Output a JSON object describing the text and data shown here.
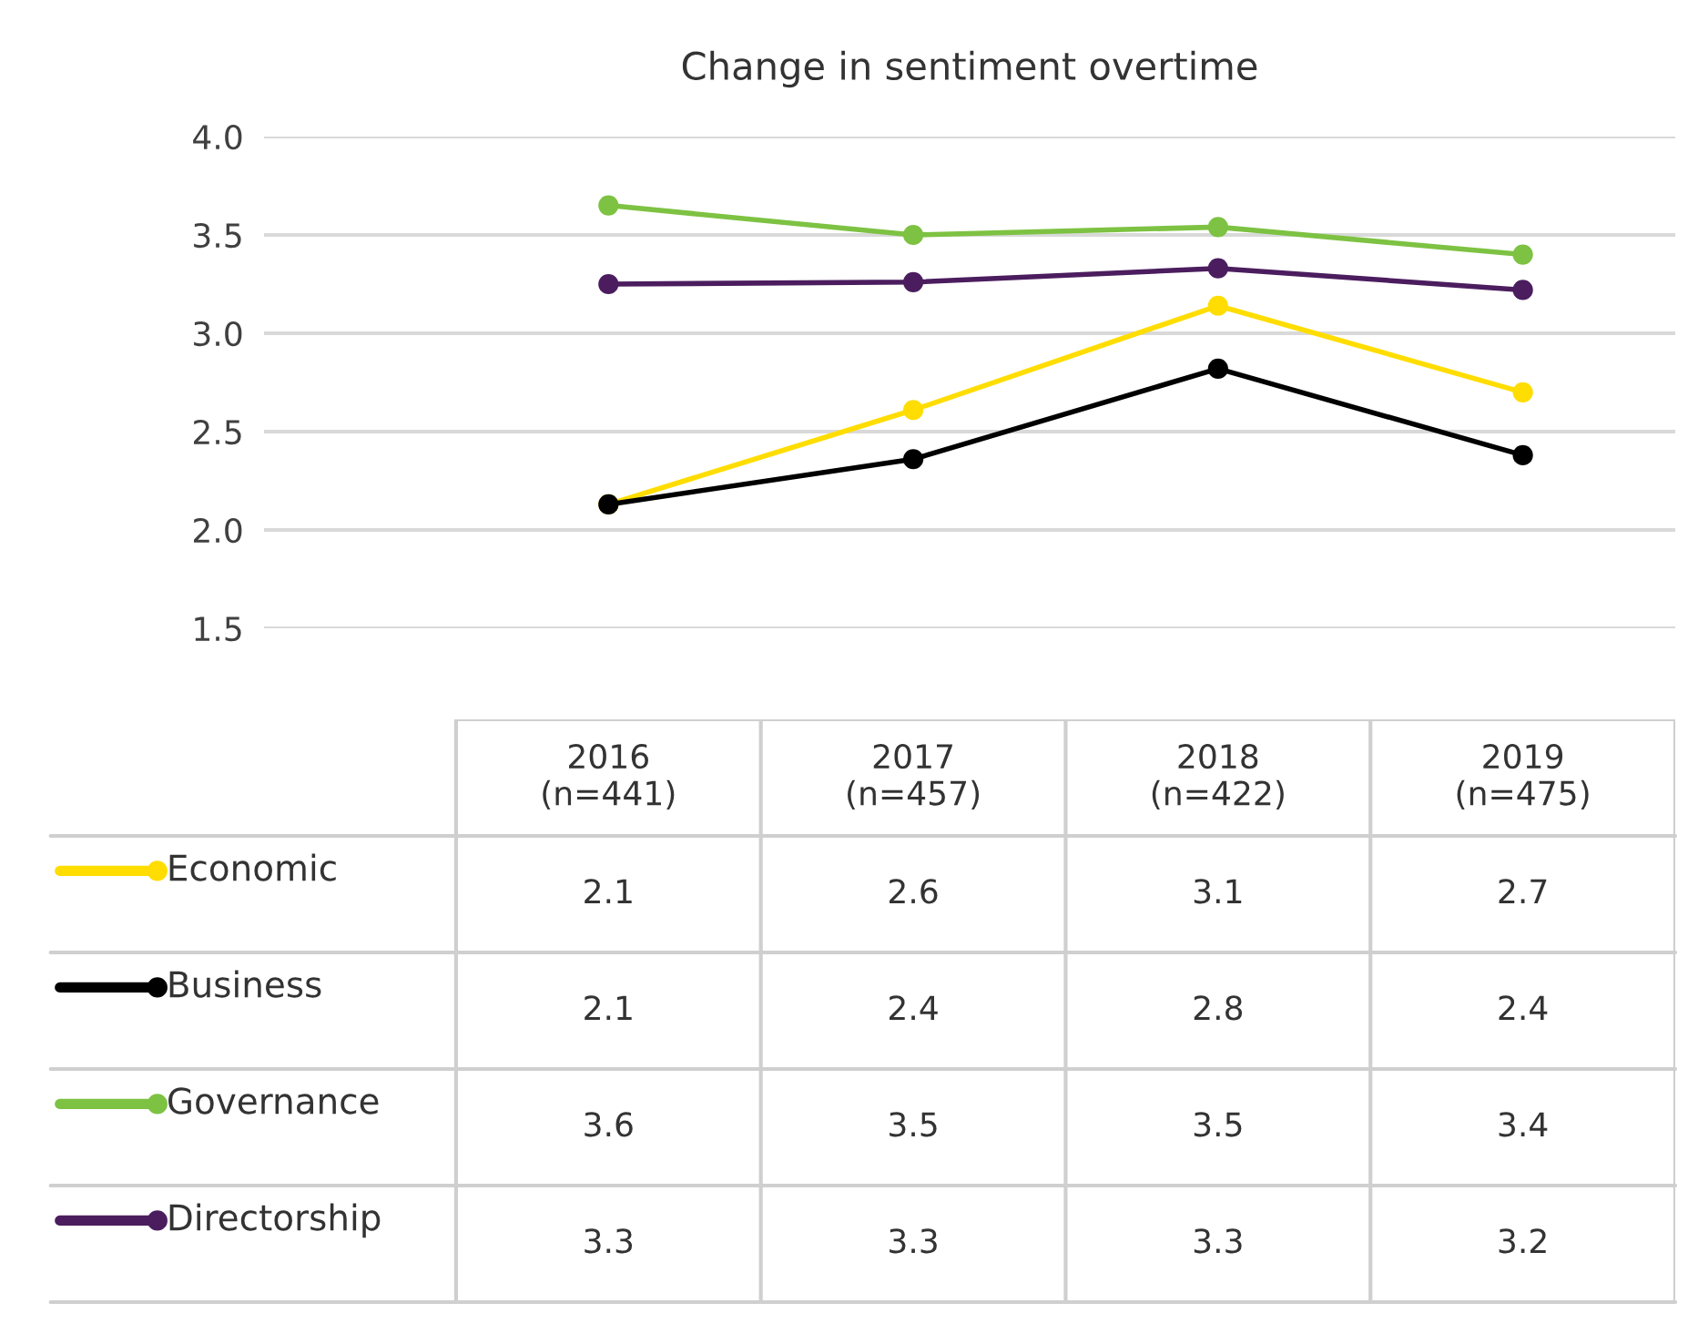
{
  "chart_data": {
    "type": "line",
    "title": "Change in sentiment overtime",
    "categories": [
      "2016\n(n=441)",
      "2017\n(n=457)",
      "2018\n(n=422)",
      "2019\n(n=475)"
    ],
    "series": [
      {
        "name": "Economic",
        "color": "#ffdd00",
        "values": [
          2.13,
          2.61,
          3.14,
          2.7
        ],
        "value_labels": [
          "2.1",
          "2.6",
          "3.1",
          "2.7"
        ]
      },
      {
        "name": "Business",
        "color": "#000000",
        "values": [
          2.13,
          2.36,
          2.82,
          2.38
        ],
        "value_labels": [
          "2.1",
          "2.4",
          "2.8",
          "2.4"
        ]
      },
      {
        "name": "Governance",
        "color": "#7dc242",
        "values": [
          3.65,
          3.5,
          3.54,
          3.4
        ],
        "value_labels": [
          "3.6",
          "3.5",
          "3.5",
          "3.4"
        ]
      },
      {
        "name": "Directorship",
        "color": "#4b1d5e",
        "values": [
          3.25,
          3.26,
          3.33,
          3.22
        ],
        "value_labels": [
          "3.3",
          "3.3",
          "3.3",
          "3.2"
        ]
      }
    ],
    "ylim": [
      1.5,
      4.0
    ],
    "yticks": [
      {
        "value": 4.0,
        "label": "4.0"
      },
      3.5,
      {
        "value": 3.0,
        "label": "3.0"
      },
      2.5,
      {
        "value": 2.0,
        "label": "2.0"
      },
      1.5
    ],
    "grid": "y",
    "marker": "circle",
    "line_style": "solid",
    "legend": "bottom left"
  }
}
